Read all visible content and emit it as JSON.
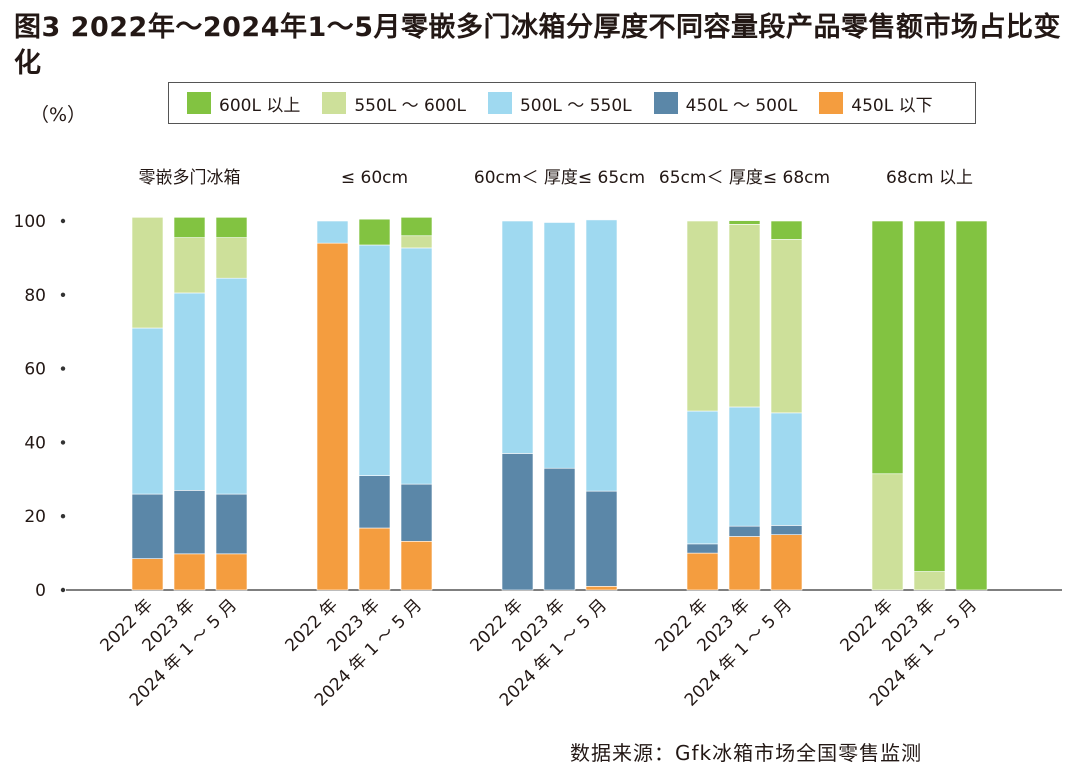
{
  "title": "图3  2022年～2024年1～5月零嵌多门冰箱分厚度不同容量段产品零售额市场占比变化",
  "unit": "（%）",
  "source": "数据来源：Gfk冰箱市场全国零售监测",
  "colors": {
    "600L 以上": "#82c341",
    "550L ～ 600L": "#cde09a",
    "500L ～ 550L": "#9fd9f0",
    "450L ～ 500L": "#5b87a8",
    "450L 以下": "#f49d3f"
  },
  "chart_data": {
    "type": "bar",
    "stacked": true,
    "ylim": [
      0,
      100
    ],
    "yticks": [
      "0",
      "20",
      "40",
      "60",
      "80",
      "100"
    ],
    "grid": false,
    "legend_position": "top",
    "legend": [
      "600L 以上",
      "550L ～ 600L",
      "500L ～ 550L",
      "450L ～ 500L",
      "450L 以下"
    ],
    "stack_order": [
      "450L 以下",
      "450L ～ 500L",
      "500L ～ 550L",
      "550L ～ 600L",
      "600L 以上"
    ],
    "groups": [
      {
        "label": "零嵌多门冰箱",
        "categories": [
          "2022 年",
          "2023 年",
          "2024 年 1 ～ 5 月"
        ],
        "series": [
          {
            "name": "450L 以下",
            "values": [
              8.5,
              9.8,
              9.8
            ]
          },
          {
            "name": "450L ～ 500L",
            "values": [
              17.5,
              17.2,
              16.2
            ]
          },
          {
            "name": "500L ～ 550L",
            "values": [
              45.0,
              53.5,
              58.5
            ]
          },
          {
            "name": "550L ～ 600L",
            "values": [
              30.0,
              15.0,
              11.0
            ]
          },
          {
            "name": "600L 以上",
            "values": [
              0,
              5.5,
              5.5
            ]
          }
        ]
      },
      {
        "label": "≤ 60cm",
        "categories": [
          "2022 年",
          "2023 年",
          "2024 年 1 ～ 5 月"
        ],
        "series": [
          {
            "name": "450L 以下",
            "values": [
              94.0,
              16.8,
              13.2
            ]
          },
          {
            "name": "450L ～ 500L",
            "values": [
              0,
              14.2,
              15.5
            ]
          },
          {
            "name": "500L ～ 550L",
            "values": [
              6.0,
              62.5,
              64.0
            ]
          },
          {
            "name": "550L ～ 600L",
            "values": [
              0,
              0,
              3.3
            ]
          },
          {
            "name": "600L 以上",
            "values": [
              0,
              7.0,
              5.0
            ]
          }
        ]
      },
      {
        "label": "60cm＜ 厚度≤ 65cm",
        "categories": [
          "2022 年",
          "2023 年",
          "2024 年 1 ～ 5 月"
        ],
        "series": [
          {
            "name": "450L 以下",
            "values": [
              0,
              0,
              1.0
            ]
          },
          {
            "name": "450L ～ 500L",
            "values": [
              37.0,
              33.0,
              25.8
            ]
          },
          {
            "name": "500L ～ 550L",
            "values": [
              63.0,
              66.6,
              73.5
            ]
          },
          {
            "name": "550L ～ 600L",
            "values": [
              0,
              0,
              0
            ]
          },
          {
            "name": "600L 以上",
            "values": [
              0,
              0,
              0
            ]
          }
        ]
      },
      {
        "label": "65cm＜ 厚度≤ 68cm",
        "categories": [
          "2022 年",
          "2023 年",
          "2024 年 1 ～ 5 月"
        ],
        "series": [
          {
            "name": "450L 以下",
            "values": [
              10.0,
              14.5,
              15.0
            ]
          },
          {
            "name": "450L ～ 500L",
            "values": [
              2.5,
              2.8,
              2.5
            ]
          },
          {
            "name": "500L ～ 550L",
            "values": [
              36.0,
              32.3,
              30.5
            ]
          },
          {
            "name": "550L ～ 600L",
            "values": [
              51.5,
              49.5,
              47.0
            ]
          },
          {
            "name": "600L 以上",
            "values": [
              0,
              1.0,
              5.0
            ]
          }
        ]
      },
      {
        "label": "68cm 以上",
        "categories": [
          "2022 年",
          "2023 年",
          "2024 年 1 ～ 5 月"
        ],
        "series": [
          {
            "name": "450L 以下",
            "values": [
              0,
              0,
              0
            ]
          },
          {
            "name": "450L ～ 500L",
            "values": [
              0,
              0,
              0
            ]
          },
          {
            "name": "500L ～ 550L",
            "values": [
              0,
              0,
              0
            ]
          },
          {
            "name": "550L ～ 600L",
            "values": [
              31.5,
              5.0,
              0
            ]
          },
          {
            "name": "600L 以上",
            "values": [
              68.5,
              95.0,
              100.0
            ]
          }
        ]
      }
    ]
  }
}
